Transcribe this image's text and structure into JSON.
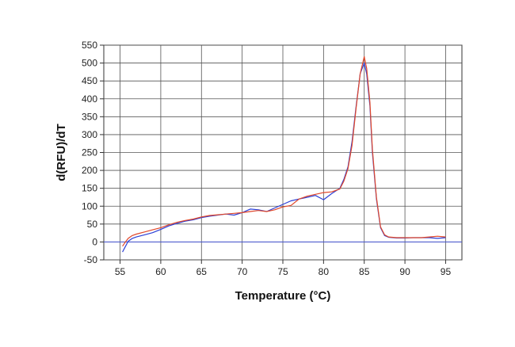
{
  "chart_data": {
    "type": "line",
    "title": "",
    "xlabel": "Temperature (°C)",
    "ylabel": "d(RFU)/dT",
    "xlim": [
      53,
      97
    ],
    "ylim": [
      -50,
      550
    ],
    "xticks": [
      55,
      60,
      65,
      70,
      75,
      80,
      85,
      90,
      95
    ],
    "yticks": [
      -50,
      0,
      50,
      100,
      150,
      200,
      250,
      300,
      350,
      400,
      450,
      500,
      550
    ],
    "grid": true,
    "baseline": {
      "y": 0,
      "color": "#4a5ad8"
    },
    "series": [
      {
        "color": "#2b3fd6",
        "x": [
          55.3,
          55.6,
          56,
          56.5,
          57,
          58,
          59,
          60,
          61,
          62,
          63,
          64,
          65,
          66,
          67,
          68,
          69,
          70,
          71,
          72,
          73,
          74,
          75,
          76,
          77,
          78,
          79,
          80,
          81,
          82,
          82.5,
          83,
          83.5,
          84,
          84.5,
          85,
          85.3,
          85.7,
          86,
          86.5,
          87,
          87.5,
          88,
          89,
          90,
          91,
          92,
          93,
          94,
          95
        ],
        "y": [
          -28,
          -15,
          2,
          10,
          14,
          20,
          26,
          35,
          45,
          52,
          58,
          62,
          68,
          72,
          75,
          78,
          75,
          82,
          92,
          90,
          85,
          95,
          105,
          115,
          120,
          125,
          130,
          118,
          135,
          150,
          175,
          210,
          280,
          380,
          470,
          500,
          470,
          380,
          250,
          120,
          40,
          18,
          13,
          11,
          11,
          12,
          12,
          12,
          10,
          12
        ]
      },
      {
        "color": "#e0472a",
        "x": [
          55.3,
          55.6,
          56,
          56.5,
          57,
          58,
          59,
          60,
          61,
          62,
          63,
          64,
          65,
          66,
          67,
          68,
          69,
          70,
          71,
          72,
          73,
          74,
          75,
          76,
          77,
          78,
          79,
          80,
          81,
          82,
          82.5,
          83,
          83.5,
          84,
          84.5,
          85,
          85.3,
          85.7,
          86,
          86.5,
          87,
          87.5,
          88,
          89,
          90,
          91,
          92,
          93,
          94,
          95
        ],
        "y": [
          -12,
          -2,
          10,
          18,
          22,
          28,
          34,
          40,
          48,
          55,
          60,
          64,
          70,
          74,
          76,
          78,
          80,
          82,
          85,
          88,
          85,
          90,
          98,
          102,
          120,
          128,
          133,
          138,
          140,
          148,
          170,
          205,
          270,
          375,
          470,
          518,
          485,
          390,
          260,
          125,
          42,
          20,
          14,
          12,
          12,
          12,
          12,
          14,
          16,
          14
        ]
      }
    ]
  }
}
